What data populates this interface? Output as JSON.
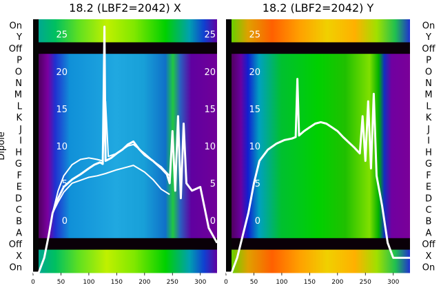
{
  "chart_data": {
    "type": "heatmap",
    "ylabel": "Dipole",
    "row_labels": [
      "On",
      "Y",
      "Off",
      "P",
      "O",
      "N",
      "M",
      "L",
      "K",
      "J",
      "I",
      "H",
      "G",
      "F",
      "E",
      "D",
      "C",
      "B",
      "A",
      "Off",
      "X",
      "On"
    ],
    "x_ticks": [
      0,
      50,
      100,
      150,
      200,
      250,
      300
    ],
    "xlim": [
      0,
      330
    ],
    "overlay_ticks": [
      25,
      20,
      15,
      10,
      5,
      0
    ],
    "overlay_ylim": [
      -7,
      27
    ],
    "panels": [
      {
        "title": "18.2 (LBF2=2042) X",
        "right_tick_labels": [
          "25",
          "20",
          "15",
          "10",
          "5",
          "0"
        ],
        "series": [
          {
            "points": [
              [
                0,
                -7
              ],
              [
                10,
                -7
              ],
              [
                20,
                -5
              ],
              [
                28,
                -2
              ],
              [
                35,
                1
              ],
              [
                45,
                3
              ],
              [
                55,
                4.5
              ],
              [
                70,
                5.5
              ],
              [
                85,
                6.2
              ],
              [
                100,
                7
              ],
              [
                110,
                7.5
              ],
              [
                120,
                7.8
              ],
              [
                125,
                7.6
              ],
              [
                128,
                26
              ],
              [
                130,
                8
              ],
              [
                135,
                8.2
              ],
              [
                140,
                8.4
              ],
              [
                150,
                9
              ],
              [
                160,
                9.5
              ],
              [
                170,
                10.2
              ],
              [
                180,
                10.6
              ],
              [
                190,
                9.6
              ],
              [
                200,
                8.8
              ],
              [
                215,
                8
              ],
              [
                230,
                7
              ],
              [
                240,
                6.2
              ],
              [
                245,
                5
              ],
              [
                250,
                12
              ],
              [
                255,
                4
              ],
              [
                260,
                14
              ],
              [
                265,
                3
              ],
              [
                270,
                13
              ],
              [
                275,
                5
              ],
              [
                285,
                4
              ],
              [
                300,
                4.5
              ],
              [
                315,
                -1
              ],
              [
                330,
                -3
              ]
            ]
          },
          {
            "points": [
              [
                35,
                1
              ],
              [
                45,
                4
              ],
              [
                55,
                6
              ],
              [
                70,
                7.5
              ],
              [
                85,
                8.2
              ],
              [
                100,
                8.4
              ],
              [
                115,
                8.2
              ],
              [
                125,
                8
              ],
              [
                130,
                16
              ],
              [
                135,
                8.6
              ],
              [
                150,
                9
              ],
              [
                170,
                10
              ],
              [
                180,
                10.2
              ],
              [
                200,
                9
              ],
              [
                215,
                8
              ],
              [
                230,
                7.2
              ],
              [
                245,
                6
              ]
            ]
          },
          {
            "points": [
              [
                35,
                1
              ],
              [
                45,
                2.5
              ],
              [
                55,
                3.8
              ],
              [
                70,
                5
              ],
              [
                85,
                5.4
              ],
              [
                100,
                5.8
              ],
              [
                115,
                6
              ],
              [
                130,
                6.3
              ],
              [
                150,
                6.8
              ],
              [
                170,
                7.2
              ],
              [
                180,
                7.4
              ],
              [
                200,
                6.5
              ],
              [
                215,
                5.5
              ],
              [
                230,
                4.2
              ],
              [
                245,
                3.5
              ]
            ]
          }
        ]
      },
      {
        "title": "18.2 (LBF2=2042) Y",
        "right_tick_labels": [
          "",
          "",
          "",
          "",
          "",
          ""
        ],
        "series": [
          {
            "points": [
              [
                0,
                -7
              ],
              [
                10,
                -7
              ],
              [
                20,
                -5
              ],
              [
                30,
                -2
              ],
              [
                40,
                1
              ],
              [
                50,
                5
              ],
              [
                60,
                8
              ],
              [
                75,
                9.5
              ],
              [
                90,
                10.3
              ],
              [
                105,
                10.8
              ],
              [
                118,
                11
              ],
              [
                125,
                11.2
              ],
              [
                128,
                19
              ],
              [
                131,
                11.4
              ],
              [
                140,
                12
              ],
              [
                150,
                12.5
              ],
              [
                160,
                13
              ],
              [
                170,
                13.2
              ],
              [
                180,
                13
              ],
              [
                190,
                12.5
              ],
              [
                200,
                12
              ],
              [
                210,
                11.2
              ],
              [
                220,
                10.5
              ],
              [
                230,
                9.8
              ],
              [
                240,
                9
              ],
              [
                245,
                14
              ],
              [
                250,
                8
              ],
              [
                255,
                16
              ],
              [
                260,
                7
              ],
              [
                265,
                17
              ],
              [
                270,
                6
              ],
              [
                280,
                2
              ],
              [
                290,
                -3
              ],
              [
                300,
                -5
              ],
              [
                310,
                -5
              ],
              [
                330,
                -5
              ]
            ]
          }
        ]
      }
    ]
  }
}
